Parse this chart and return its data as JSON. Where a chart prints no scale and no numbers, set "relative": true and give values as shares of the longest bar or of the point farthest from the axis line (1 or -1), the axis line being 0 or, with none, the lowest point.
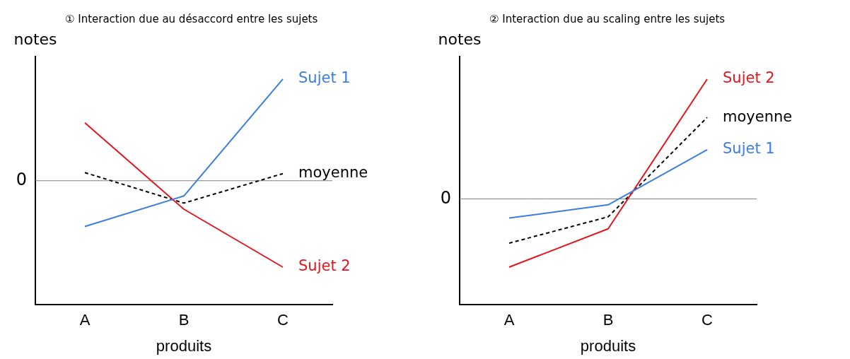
{
  "chart_data": [
    {
      "type": "line",
      "title": "① Interaction due au désaccord entre les sujets",
      "xlabel": "produits",
      "ylabel": "notes",
      "categories": [
        "A",
        "B",
        "C"
      ],
      "relative": true,
      "legend": false,
      "marker": "none",
      "series": [
        {
          "name": "Sujet 1",
          "color": "#3b7de0",
          "values": [
            -0.45,
            -0.15,
            1
          ]
        },
        {
          "name": "Sujet 2",
          "color": "#e8141c",
          "values": [
            0.57,
            -0.28,
            -0.85
          ]
        },
        {
          "name": "moyenne",
          "color": "#000000",
          "line_style": "dashed",
          "values": [
            0.08,
            -0.22,
            0.07
          ]
        }
      ],
      "ref_lines": [
        {
          "axis": "y",
          "value": 0,
          "label": "0",
          "color": "#808080"
        }
      ]
    },
    {
      "type": "line",
      "title": "② Interaction due au scaling entre les sujets",
      "xlabel": "produits",
      "ylabel": "notes",
      "categories": [
        "A",
        "B",
        "C"
      ],
      "relative": true,
      "legend": false,
      "marker": "none",
      "series": [
        {
          "name": "Sujet 1",
          "color": "#3b7de0",
          "values": [
            -0.16,
            -0.05,
            0.41
          ]
        },
        {
          "name": "Sujet 2",
          "color": "#e8141c",
          "values": [
            -0.57,
            -0.25,
            1
          ]
        },
        {
          "name": "moyenne",
          "color": "#000000",
          "line_style": "dashed",
          "values": [
            -0.37,
            -0.15,
            0.68
          ]
        }
      ],
      "ref_lines": [
        {
          "axis": "y",
          "value": 0,
          "label": "0",
          "color": "#808080"
        }
      ]
    }
  ]
}
